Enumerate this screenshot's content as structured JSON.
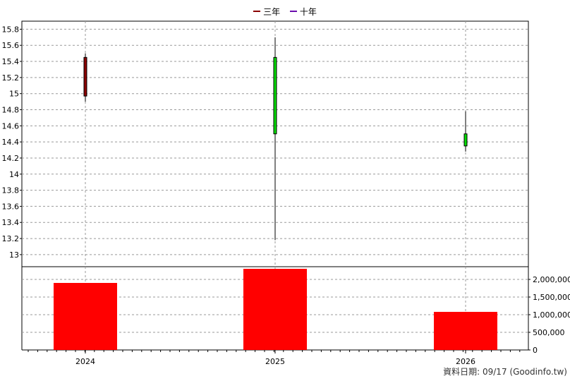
{
  "legend": {
    "item_1": {
      "label": "三年",
      "color": "#8b0000"
    },
    "item_2": {
      "label": "十年",
      "color": "#6a0dad"
    }
  },
  "footer": "資料日期: 09/17  (Goodinfo.tw)",
  "colors": {
    "up": "#00dd00",
    "down": "#8b0000",
    "volume": "#ff0000",
    "grid": "#999999"
  },
  "chart_data": [
    {
      "type": "candlestick",
      "categories": [
        "2024",
        "2025",
        "2026"
      ],
      "ylim": [
        12.85,
        15.9
      ],
      "y_ticks": [
        13,
        13.2,
        13.4,
        13.6,
        13.8,
        14,
        14.2,
        14.4,
        14.6,
        14.8,
        15,
        15.2,
        15.4,
        15.6,
        15.8
      ],
      "y_tick_labels": [
        "13",
        "13.2",
        "13.4",
        "13.6",
        "13.8",
        "14",
        "14.2",
        "14.4",
        "14.6",
        "14.8",
        "15",
        "15.2",
        "15.4",
        "15.6",
        "15.8"
      ],
      "candles": [
        {
          "x": "2024",
          "open": 15.45,
          "high": 15.5,
          "low": 14.9,
          "close": 14.97
        },
        {
          "x": "2025",
          "open": 14.5,
          "high": 15.7,
          "low": 13.18,
          "close": 15.45
        },
        {
          "x": "2026",
          "open": 14.35,
          "high": 14.78,
          "low": 14.28,
          "close": 14.5
        }
      ],
      "grid": true
    },
    {
      "type": "bar",
      "categories": [
        "2024",
        "2025",
        "2026"
      ],
      "values": [
        1900000,
        2300000,
        1080000
      ],
      "ylim": [
        0,
        2300000
      ],
      "y_ticks": [
        0,
        500000,
        1000000,
        1500000,
        2000000
      ],
      "y_tick_labels": [
        "0",
        "500,000",
        "1,000,000",
        "1,500,000",
        "2,000,000"
      ],
      "x_tick_labels": [
        "2024",
        "2025",
        "2026"
      ],
      "grid": true
    }
  ]
}
